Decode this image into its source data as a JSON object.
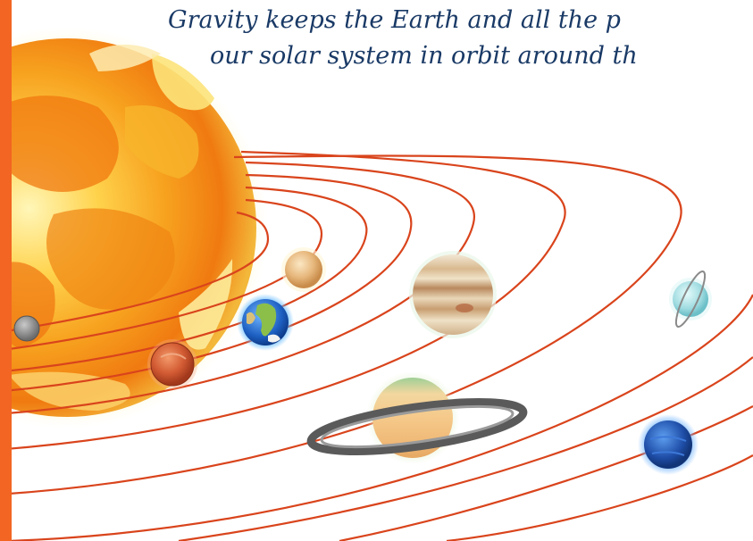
{
  "caption": {
    "line1": "Gravity keeps the Earth and all the p",
    "line2": "our solar system in orbit around th"
  },
  "colors": {
    "accent_bar": "#f26522",
    "caption_text": "#1a3a66",
    "orbit_line": "#d9441c",
    "sun_core": "#fff5b0",
    "sun_outer": "#f07a10"
  },
  "scene": {
    "sun": "sun-illustration",
    "planets": [
      "mercury",
      "venus",
      "earth",
      "mars",
      "jupiter",
      "saturn",
      "uranus",
      "neptune"
    ]
  }
}
